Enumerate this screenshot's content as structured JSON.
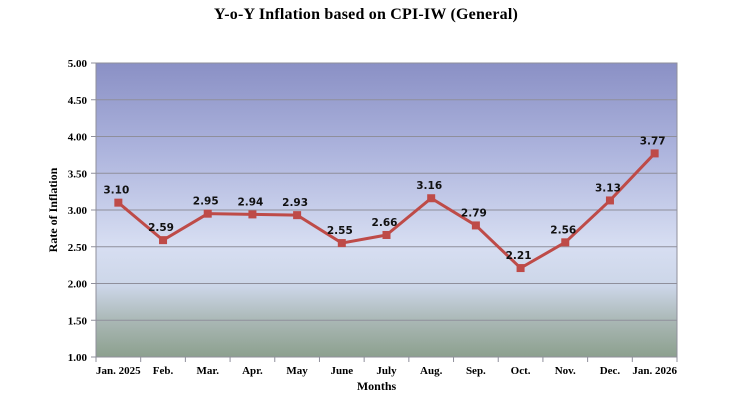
{
  "chart_data": {
    "type": "line",
    "title": "Y-o-Y Inflation based on CPI-IW (General)",
    "xlabel": "Months",
    "ylabel": "Rate of Inflation",
    "categories": [
      "Jan. 2025",
      "Feb.",
      "Mar.",
      "Apr.",
      "May",
      "June",
      "July",
      "Aug.",
      "Sep.",
      "Oct.",
      "Nov.",
      "Dec.",
      "Jan. 2026"
    ],
    "values": [
      3.1,
      2.59,
      2.95,
      2.94,
      2.93,
      2.55,
      2.66,
      3.16,
      2.79,
      2.21,
      2.56,
      3.13,
      3.77
    ],
    "point_labels": [
      "3.10",
      "2.59",
      "2.95",
      "2.94",
      "2.93",
      "2.55",
      "2.66",
      "3.16",
      "2.79",
      "2.21",
      "2.56",
      "3.13",
      "3.77"
    ],
    "ylim": [
      1.0,
      5.0
    ],
    "ytick_step": 0.5,
    "ytick_labels": [
      "1.00",
      "1.50",
      "2.00",
      "2.50",
      "3.00",
      "3.50",
      "4.00",
      "4.50",
      "5.00"
    ],
    "grid": true,
    "legend": "none",
    "line_color": "#be4b48",
    "marker": "square",
    "marker_color": "#be4b48",
    "gridline_color": "#8f8f9b",
    "axis_line_color": "#8f8f9b",
    "plot_bg_gradient": [
      {
        "offset": "0%",
        "color": "#8a90c5"
      },
      {
        "offset": "30%",
        "color": "#adb4dd"
      },
      {
        "offset": "62%",
        "color": "#d7def2"
      },
      {
        "offset": "76%",
        "color": "#ccd6e8"
      },
      {
        "offset": "88%",
        "color": "#a9b7b4"
      },
      {
        "offset": "100%",
        "color": "#8ca08e"
      }
    ]
  }
}
